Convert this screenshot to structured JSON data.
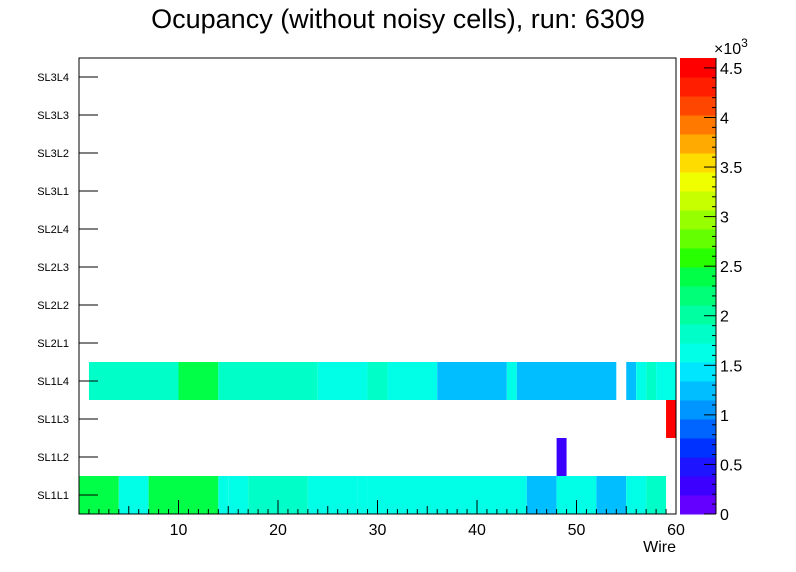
{
  "chart_data": {
    "type": "heatmap",
    "title": "Ocupancy (without noisy cells), run: 6309",
    "xlabel": "Wire",
    "ylabel": "",
    "xlim": [
      0,
      60
    ],
    "x_ticks": [
      10,
      20,
      30,
      40,
      50,
      60
    ],
    "y_categories": [
      "SL1L1",
      "SL1L2",
      "SL1L3",
      "SL1L4",
      "SL2L1",
      "SL2L2",
      "SL2L3",
      "SL2L4",
      "SL3L1",
      "SL3L2",
      "SL3L3",
      "SL3L4"
    ],
    "z_range": [
      0,
      4600
    ],
    "z_ticks": [
      {
        "value": 0,
        "label": "0"
      },
      {
        "value": 500,
        "label": "0.5"
      },
      {
        "value": 1000,
        "label": "1"
      },
      {
        "value": 1500,
        "label": "1.5"
      },
      {
        "value": 2000,
        "label": "2"
      },
      {
        "value": 2500,
        "label": "2.5"
      },
      {
        "value": 3000,
        "label": "3"
      },
      {
        "value": 3500,
        "label": "3.5"
      },
      {
        "value": 4000,
        "label": "4"
      },
      {
        "value": 4500,
        "label": "4.5"
      }
    ],
    "z_multiplier_label": "×10",
    "z_multiplier_exp": "3",
    "palette": [
      "#6400ff",
      "#3c00ff",
      "#1e14ff",
      "#0032ff",
      "#0064ff",
      "#0096ff",
      "#00beff",
      "#00e6ff",
      "#00ffe6",
      "#00ffc8",
      "#00ffa0",
      "#00ff78",
      "#00ff46",
      "#28ff00",
      "#64ff00",
      "#96ff00",
      "#c8ff00",
      "#f0ff00",
      "#ffdc00",
      "#ffaa00",
      "#ff7800",
      "#ff4600",
      "#ff1e00",
      "#ff0000"
    ],
    "cells": [
      {
        "layer": "SL1L1",
        "x0": 0,
        "x1": 4,
        "value": 2300
      },
      {
        "layer": "SL1L1",
        "x0": 4,
        "x1": 7,
        "value": 1700
      },
      {
        "layer": "SL1L1",
        "x0": 7,
        "x1": 14,
        "value": 2300
      },
      {
        "layer": "SL1L1",
        "x0": 14,
        "x1": 15,
        "value": 1700
      },
      {
        "layer": "SL1L1",
        "x0": 15,
        "x1": 17,
        "value": 1600
      },
      {
        "layer": "SL1L1",
        "x0": 17,
        "x1": 23,
        "value": 1800
      },
      {
        "layer": "SL1L1",
        "x0": 23,
        "x1": 28,
        "value": 1600
      },
      {
        "layer": "SL1L1",
        "x0": 28,
        "x1": 29,
        "value": 1700
      },
      {
        "layer": "SL1L1",
        "x0": 29,
        "x1": 45,
        "value": 1600
      },
      {
        "layer": "SL1L1",
        "x0": 45,
        "x1": 48,
        "value": 1300
      },
      {
        "layer": "SL1L1",
        "x0": 48,
        "x1": 52,
        "value": 1600
      },
      {
        "layer": "SL1L1",
        "x0": 52,
        "x1": 55,
        "value": 1200
      },
      {
        "layer": "SL1L1",
        "x0": 55,
        "x1": 57,
        "value": 1600
      },
      {
        "layer": "SL1L1",
        "x0": 57,
        "x1": 59,
        "value": 1800
      },
      {
        "layer": "SL1L2",
        "x0": 48,
        "x1": 49,
        "value": 250
      },
      {
        "layer": "SL1L3",
        "x0": 59,
        "x1": 60,
        "value": 4600
      },
      {
        "layer": "SL1L4",
        "x0": 1,
        "x1": 10,
        "value": 1800
      },
      {
        "layer": "SL1L4",
        "x0": 10,
        "x1": 14,
        "value": 2300
      },
      {
        "layer": "SL1L4",
        "x0": 14,
        "x1": 24,
        "value": 1800
      },
      {
        "layer": "SL1L4",
        "x0": 24,
        "x1": 29,
        "value": 1600
      },
      {
        "layer": "SL1L4",
        "x0": 29,
        "x1": 31,
        "value": 1800
      },
      {
        "layer": "SL1L4",
        "x0": 31,
        "x1": 36,
        "value": 1600
      },
      {
        "layer": "SL1L4",
        "x0": 36,
        "x1": 43,
        "value": 1300
      },
      {
        "layer": "SL1L4",
        "x0": 43,
        "x1": 44,
        "value": 1600
      },
      {
        "layer": "SL1L4",
        "x0": 44,
        "x1": 54,
        "value": 1300
      },
      {
        "layer": "SL1L4",
        "x0": 55,
        "x1": 56,
        "value": 1300
      },
      {
        "layer": "SL1L4",
        "x0": 56,
        "x1": 57,
        "value": 1600
      },
      {
        "layer": "SL1L4",
        "x0": 57,
        "x1": 58,
        "value": 1800
      },
      {
        "layer": "SL1L4",
        "x0": 58,
        "x1": 60,
        "value": 1600
      }
    ]
  }
}
